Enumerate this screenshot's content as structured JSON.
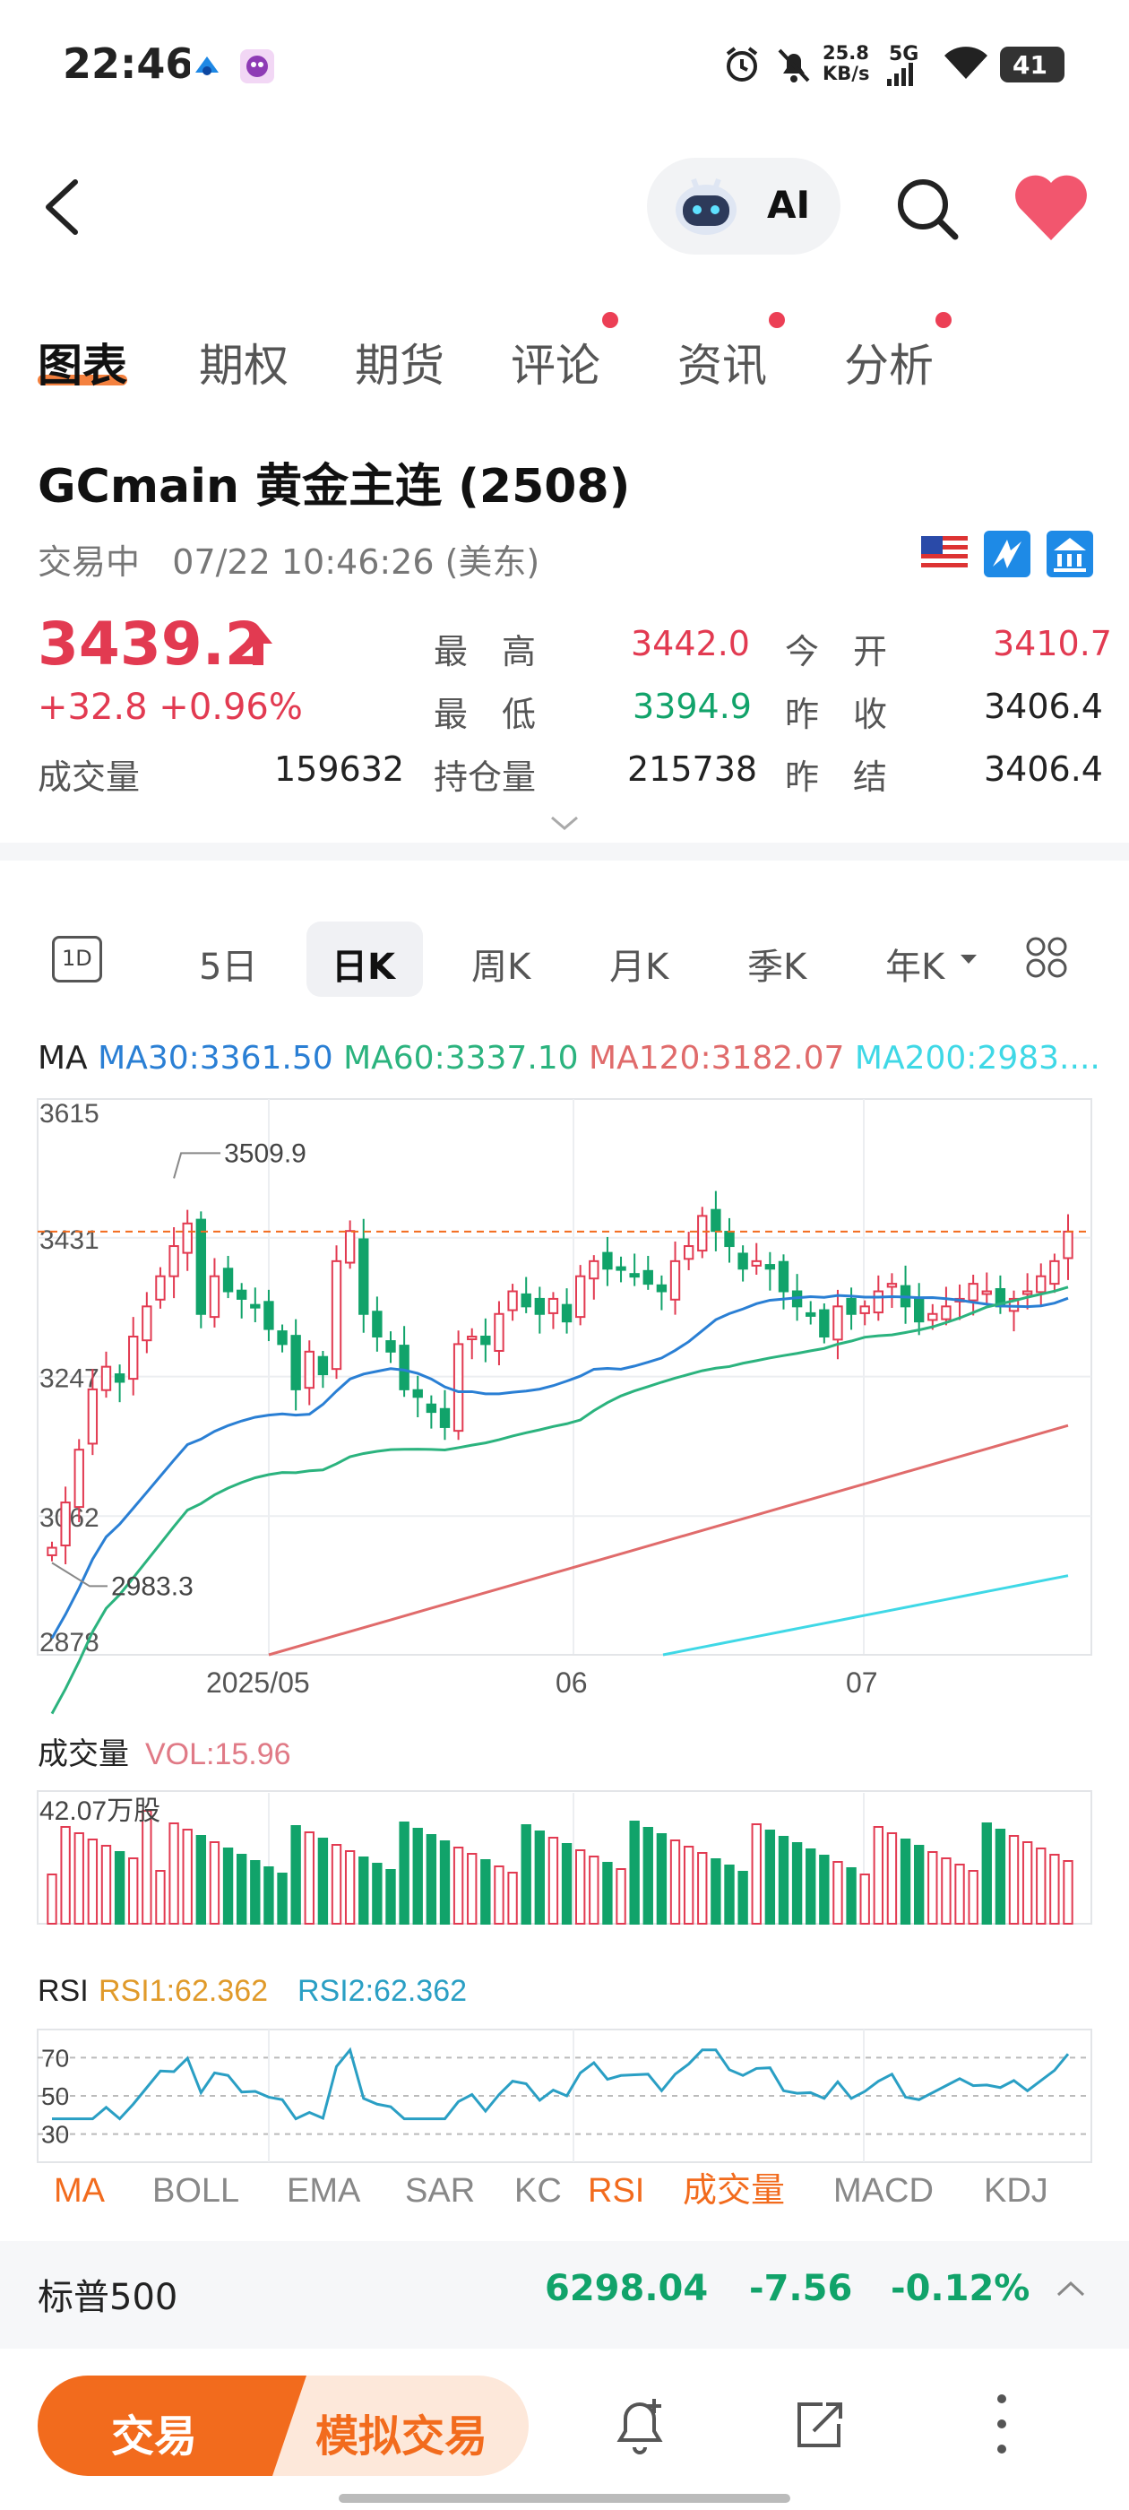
{
  "status_bar": {
    "time": "22:46",
    "net_speed": "25.8\nKB/s",
    "net_speed_line1": "25.8",
    "net_speed_line2": "KB/s",
    "signal": "5G",
    "battery": "41"
  },
  "header": {
    "ai_label": "AI"
  },
  "tabs": [
    {
      "label": "图表",
      "active": true,
      "dot": false
    },
    {
      "label": "期权",
      "active": false,
      "dot": false
    },
    {
      "label": "期货",
      "active": false,
      "dot": false
    },
    {
      "label": "评论",
      "active": false,
      "dot": true
    },
    {
      "label": "资讯",
      "active": false,
      "dot": true
    },
    {
      "label": "分析",
      "active": false,
      "dot": true
    }
  ],
  "instrument": {
    "title": "GCmain  黄金主连 (2508)",
    "status": "交易中",
    "datetime": "07/22 10:46:26 (美东)",
    "price": "3439.2",
    "change": "+32.8",
    "change_pct": "+0.96%",
    "volume_label": "成交量",
    "volume": "159632",
    "stats": {
      "high_label": "最　高",
      "high": "3442.0",
      "low_label": "最　低",
      "low": "3394.9",
      "oi_label": "持仓量",
      "oi": "215738",
      "open_label": "今　开",
      "open": "3410.7",
      "prev_close_label": "昨　收",
      "prev_close": "3406.4",
      "prev_settle_label": "昨　结",
      "prev_settle": "3406.4"
    }
  },
  "periods": {
    "items": [
      "5日",
      "日K",
      "周K",
      "月K",
      "季K",
      "年K"
    ],
    "active": "日K",
    "icon_label": "1D"
  },
  "ma_legend": {
    "label": "MA",
    "ma30": "MA30:3361.50",
    "ma60": "MA60:3337.10",
    "ma120": "MA120:3182.07",
    "ma200": "MA200:2983...."
  },
  "colors": {
    "up": "#e23a51",
    "down": "#11a36a",
    "ma30": "#2a7fd4",
    "ma60": "#2bb37e",
    "ma120": "#e06b6b",
    "ma200": "#3fd8e6",
    "accent": "#f26b1d"
  },
  "chart_data": [
    {
      "type": "candlestick",
      "y_ticks": [
        "3615",
        "3431",
        "3247",
        "3062",
        "2878"
      ],
      "ylim": [
        2878,
        3615
      ],
      "x_ticks": [
        "2025/05",
        "06",
        "07"
      ],
      "annotations": [
        "3509.9",
        "2983.3"
      ],
      "last_price_line": 3439.2,
      "series": [
        {
          "name": "MA30",
          "end_value": 3361.5
        },
        {
          "name": "MA60",
          "end_value": 3337.1
        },
        {
          "name": "MA120",
          "end_value": 3182.07
        },
        {
          "name": "MA200",
          "end_value": 2983.0
        }
      ],
      "close": [
        3020,
        3080,
        3150,
        3230,
        3260,
        3240,
        3300,
        3340,
        3380,
        3420,
        3450,
        3330,
        3380,
        3360,
        3350,
        3340,
        3310,
        3290,
        3230,
        3280,
        3250,
        3400,
        3440,
        3330,
        3300,
        3280,
        3230,
        3220,
        3200,
        3180,
        3290,
        3300,
        3290,
        3330,
        3360,
        3340,
        3330,
        3350,
        3320,
        3380,
        3400,
        3390,
        3390,
        3380,
        3370,
        3360,
        3400,
        3420,
        3460,
        3440,
        3420,
        3390,
        3400,
        3390,
        3360,
        3340,
        3330,
        3300,
        3340,
        3330,
        3340,
        3360,
        3370,
        3340,
        3320,
        3330,
        3340,
        3350,
        3370,
        3360,
        3340,
        3350,
        3360,
        3380,
        3400,
        3439.2
      ]
    },
    {
      "type": "bar",
      "title": "成交量",
      "legend": "VOL:15.96",
      "y_tick": "42.07万股"
    },
    {
      "type": "line",
      "title": "RSI",
      "legend_rsi1": "RSI1:62.362",
      "legend_rsi2": "RSI2:62.362",
      "y_ticks": [
        "70",
        "50",
        "30"
      ]
    }
  ],
  "indicator_tabs": [
    "MA",
    "BOLL",
    "EMA",
    "SAR",
    "KC",
    "RSI",
    "成交量",
    "MACD",
    "KDJ"
  ],
  "ticker": {
    "name": "标普500",
    "value": "6298.04",
    "change": "-7.56",
    "change_pct": "-0.12%"
  },
  "footer": {
    "trade": "交易",
    "simulated_trade": "模拟交易"
  }
}
